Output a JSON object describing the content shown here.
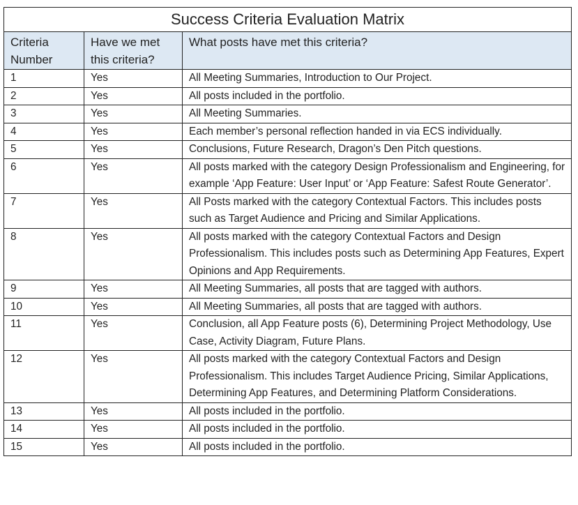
{
  "title": "Success Criteria Evaluation Matrix",
  "header_bg": "#dde8f3",
  "columns": [
    "Criteria Number",
    "Have we met this criteria?",
    "What posts have met this criteria?"
  ],
  "rows": [
    {
      "number": "1",
      "met": "Yes",
      "posts": "All Meeting Summaries, Introduction to Our Project."
    },
    {
      "number": "2",
      "met": "Yes",
      "posts": "All posts included in the portfolio."
    },
    {
      "number": "3",
      "met": "Yes",
      "posts": "All Meeting Summaries."
    },
    {
      "number": "4",
      "met": "Yes",
      "posts": "Each member’s personal reflection handed in via ECS individually."
    },
    {
      "number": "5",
      "met": "Yes",
      "posts": "Conclusions, Future Research, Dragon’s Den Pitch questions."
    },
    {
      "number": "6",
      "met": "Yes",
      "posts": "All posts marked with the category Design Professionalism and Engineering, for example ‘App Feature: User Input’ or ‘App Feature: Safest Route Generator’."
    },
    {
      "number": "7",
      "met": "Yes",
      "posts": "All Posts marked with the category Contextual Factors. This includes posts such as Target Audience and Pricing and Similar Applications."
    },
    {
      "number": "8",
      "met": "Yes",
      "posts": "All posts marked with the category Contextual Factors and Design Professionalism. This includes posts such as Determining App Features, Expert Opinions and App Requirements."
    },
    {
      "number": "9",
      "met": "Yes",
      "posts": "All Meeting Summaries, all posts that are tagged with authors."
    },
    {
      "number": "10",
      "met": "Yes",
      "posts": "All Meeting Summaries, all posts that are tagged with authors."
    },
    {
      "number": "11",
      "met": "Yes",
      "posts": "Conclusion, all App Feature posts (6), Determining Project Methodology, Use Case, Activity Diagram, Future Plans."
    },
    {
      "number": "12",
      "met": "Yes",
      "posts": "All posts marked with the category Contextual Factors and Design Professionalism. This includes Target Audience Pricing, Similar Applications, Determining App Features, and Determining Platform Considerations."
    },
    {
      "number": "13",
      "met": "Yes",
      "posts": "All posts included in the portfolio."
    },
    {
      "number": "14",
      "met": "Yes",
      "posts": "All posts included in the portfolio."
    },
    {
      "number": "15",
      "met": "Yes",
      "posts": "All posts included in the portfolio."
    }
  ]
}
